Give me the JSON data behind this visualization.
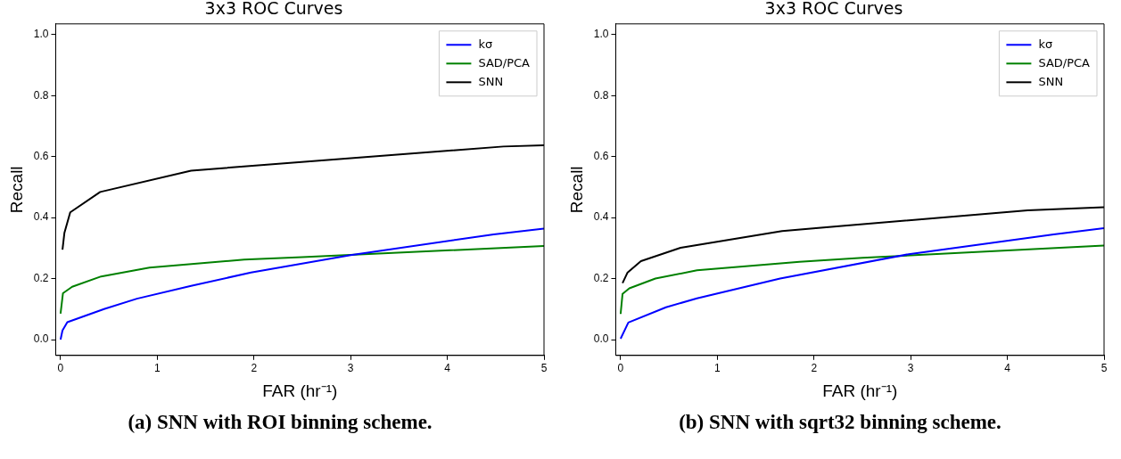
{
  "chart_data": [
    {
      "type": "line",
      "title": "3x3 ROC Curves",
      "xlabel": "FAR (hr⁻¹)",
      "ylabel": "Recall",
      "xlim": [
        -0.05,
        5
      ],
      "ylim": [
        -0.052,
        1.035
      ],
      "xticks": [
        0,
        1,
        2,
        3,
        4,
        5
      ],
      "yticks": [
        {
          "value": 0,
          "label": "0.0"
        },
        {
          "value": 0.2,
          "label": "0.2"
        },
        {
          "value": 0.4,
          "label": "0.4"
        },
        {
          "value": 0.6,
          "label": "0.6"
        },
        {
          "value": 0.8,
          "label": "0.8"
        },
        {
          "value": 1,
          "label": "1.0"
        }
      ],
      "grid": false,
      "legend": "top right",
      "annotations": [
        "(a) SNN with ROI binning scheme."
      ],
      "series": [
        {
          "name": "kσ",
          "color": "#0000ff",
          "x": [
            0,
            0.02,
            0.07,
            0.45,
            0.79,
            1.35,
            1.97,
            3.0,
            4.48,
            5
          ],
          "values": [
            0.0,
            0.03,
            0.057,
            0.1,
            0.134,
            0.176,
            0.22,
            0.277,
            0.345,
            0.364
          ]
        },
        {
          "name": "SAD/PCA",
          "color": "#008000",
          "x": [
            0,
            0.025,
            0.12,
            0.42,
            0.92,
            1.9,
            2.5,
            5
          ],
          "values": [
            0.085,
            0.152,
            0.173,
            0.207,
            0.236,
            0.262,
            0.27,
            0.307
          ]
        },
        {
          "name": "SNN",
          "color": "#000000",
          "x": [
            0.02,
            0.04,
            0.1,
            0.41,
            1.35,
            4.58,
            5
          ],
          "values": [
            0.295,
            0.35,
            0.417,
            0.484,
            0.554,
            0.633,
            0.637
          ]
        }
      ]
    },
    {
      "type": "line",
      "title": "3x3 ROC Curves",
      "xlabel": "FAR (hr⁻¹)",
      "ylabel": "Recall",
      "xlim": [
        -0.05,
        5
      ],
      "ylim": [
        -0.052,
        1.035
      ],
      "xticks": [
        0,
        1,
        2,
        3,
        4,
        5
      ],
      "yticks": [
        {
          "value": 0,
          "label": "0.0"
        },
        {
          "value": 0.2,
          "label": "0.2"
        },
        {
          "value": 0.4,
          "label": "0.4"
        },
        {
          "value": 0.6,
          "label": "0.6"
        },
        {
          "value": 0.8,
          "label": "0.8"
        },
        {
          "value": 1,
          "label": "1.0"
        }
      ],
      "grid": false,
      "legend": "top right",
      "annotations": [
        "(b) SNN with sqrt32 binning scheme."
      ],
      "series": [
        {
          "name": "kσ",
          "color": "#0000ff",
          "x": [
            0,
            0.08,
            0.47,
            0.79,
            1.65,
            2.98,
            4.48,
            5
          ],
          "values": [
            0.003,
            0.056,
            0.106,
            0.135,
            0.2,
            0.28,
            0.345,
            0.365
          ]
        },
        {
          "name": "SAD/PCA",
          "color": "#008000",
          "x": [
            0,
            0.02,
            0.09,
            0.36,
            0.79,
            1.85,
            2.5,
            5
          ],
          "values": [
            0.084,
            0.15,
            0.168,
            0.2,
            0.227,
            0.255,
            0.268,
            0.308
          ]
        },
        {
          "name": "SNN",
          "color": "#000000",
          "x": [
            0.02,
            0.07,
            0.21,
            0.62,
            1.67,
            4.21,
            5
          ],
          "values": [
            0.185,
            0.219,
            0.257,
            0.301,
            0.356,
            0.424,
            0.434
          ]
        }
      ]
    }
  ]
}
